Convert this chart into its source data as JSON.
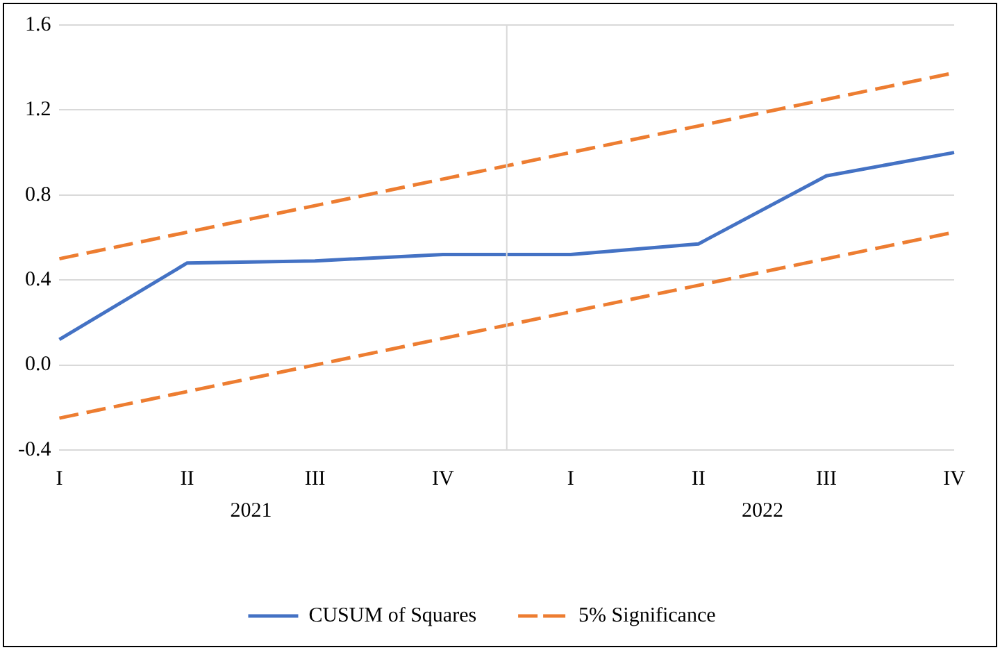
{
  "chart_data": {
    "type": "line",
    "categories": [
      "I",
      "II",
      "III",
      "IV",
      "I",
      "II",
      "III",
      "IV"
    ],
    "series": [
      {
        "name": "CUSUM of Squares",
        "color": "#4472c4",
        "line_style": "solid",
        "values": [
          0.12,
          0.48,
          0.49,
          0.52,
          0.52,
          0.57,
          0.89,
          1.0
        ]
      },
      {
        "name": "5% Significance",
        "color": "#ed7d31",
        "line_style": "dashed",
        "values": [
          0.5,
          0.625,
          0.75,
          0.875,
          1.0,
          1.125,
          1.25,
          1.375
        ]
      },
      {
        "color": "#ed7d31",
        "line_style": "dashed",
        "values": [
          -0.25,
          -0.125,
          0,
          0.125,
          0.25,
          0.375,
          0.5,
          0.625
        ]
      }
    ],
    "annotations": [
      "2021",
      "2022"
    ],
    "ylim": [
      -0.4,
      1.6
    ],
    "yticks": [
      {
        "value": -0.4,
        "label": "-0.4"
      },
      {
        "value": 0,
        "label": "0.0"
      },
      {
        "value": 0.4,
        "label": "0.4"
      },
      {
        "value": 0.8,
        "label": "0.8"
      },
      {
        "value": 1.2,
        "label": "1.2"
      },
      {
        "value": 1.6,
        "label": "1.6"
      }
    ],
    "grid": "y",
    "legend": "bottom",
    "marker": "none"
  }
}
